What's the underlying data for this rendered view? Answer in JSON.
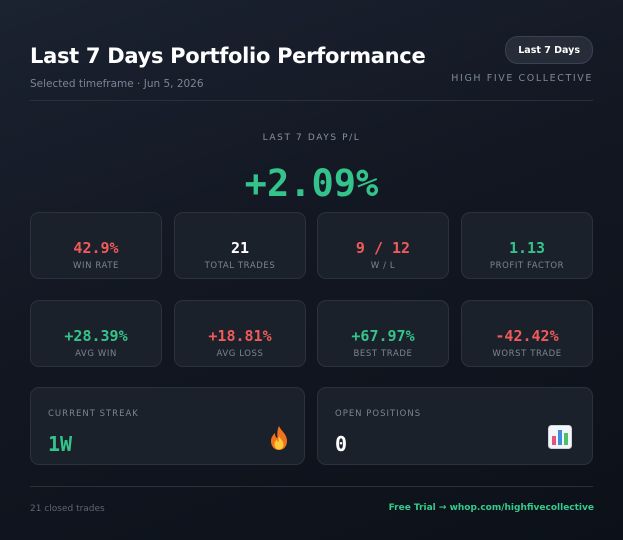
{
  "header": {
    "title": "Last 7 Days Portfolio Performance",
    "subtitle": "Selected timeframe · Jun 5, 2026",
    "timeframe_pill": "Last 7 Days",
    "brand": "HIGH FIVE COLLECTIVE"
  },
  "summary": {
    "label": "LAST 7 DAYS P/L",
    "value": "+2.09%"
  },
  "stats_row1": [
    {
      "value": "42.9%",
      "label": "WIN RATE"
    },
    {
      "value": "21",
      "label": "TOTAL TRADES"
    },
    {
      "value": "9 / 12",
      "label": "W / L"
    },
    {
      "value": "1.13",
      "label": "PROFIT FACTOR"
    }
  ],
  "stats_row2": [
    {
      "value": "+28.39%",
      "label": "AVG WIN"
    },
    {
      "value": "+18.81%",
      "label": "AVG LOSS"
    },
    {
      "value": "+67.97%",
      "label": "BEST TRADE"
    },
    {
      "value": "-42.42%",
      "label": "WORST TRADE"
    }
  ],
  "streak": {
    "label": "CURRENT STREAK",
    "value": "1W",
    "icon": "flame-icon"
  },
  "open_positions": {
    "label": "OPEN POSITIONS",
    "value": "0",
    "icon": "bar-chart-icon"
  },
  "footer": {
    "left": "21 closed trades",
    "right": "Free Trial → whop.com/highfivecollective"
  },
  "colors": {
    "positive": "#34c48b",
    "negative": "#ef5a5a",
    "background": "#121722",
    "card": "#1b212b"
  }
}
